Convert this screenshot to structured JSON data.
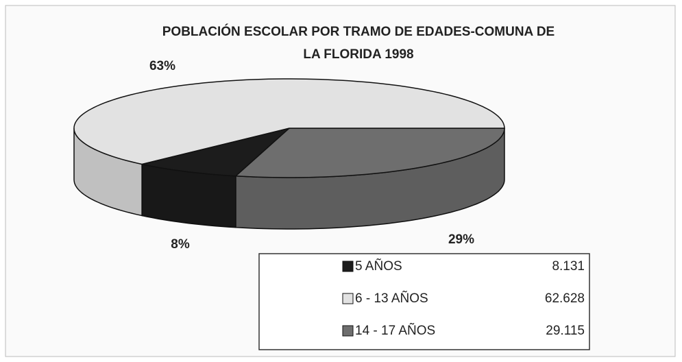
{
  "chart_data": {
    "type": "pie3d",
    "title": [
      "POBLACIÓN ESCOLAR POR TRAMO DE EDADES-COMUNA DE",
      "LA FLORIDA 1998"
    ],
    "categories": [
      "5 AÑOS",
      "6 - 13 AÑOS",
      "14 - 17 AÑOS"
    ],
    "values": [
      8,
      63,
      29
    ],
    "value_labels": [
      "8%",
      "63%",
      "29%"
    ],
    "amounts": [
      8131,
      62628,
      29115
    ],
    "amount_labels": [
      "8.131",
      "62.628",
      "29.115"
    ],
    "colors": [
      "#1c1c1c",
      "#e2e2e2",
      "#6e6e6e"
    ],
    "legend": "bottom-right"
  }
}
